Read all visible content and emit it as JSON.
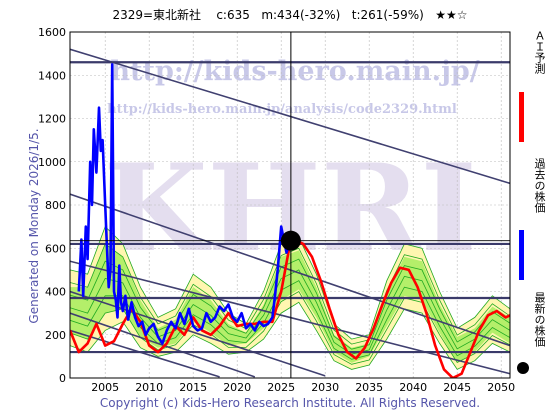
{
  "header": {
    "code_name": "2329=東北新社",
    "current": "c:635",
    "m_value": "m:434(-32%)",
    "t_value": "t:261(-59%)",
    "stars": "★★☆"
  },
  "footer": {
    "copyright": "Copyright (c) Kids-Hero Research Institute. All Rights Reserved."
  },
  "generated": "Generated on Monday 2026/1/5.",
  "watermark": {
    "url": "http://kids-hero.main.jp/",
    "analysis_url": "http://kids-hero.main.jp/analysis/code2329.html",
    "logo": "KHRI"
  },
  "legend": [
    {
      "label": "ＡＩ予測",
      "color": "#ff0000",
      "kind": "line"
    },
    {
      "label": "過去の株価",
      "color": "#0000ff",
      "kind": "line"
    },
    {
      "label": "最新の株価",
      "color": "#000000",
      "kind": "dot"
    }
  ],
  "colors": {
    "price": "#0000ff",
    "ai": "#ff0000",
    "band_outer": "#fff6b0",
    "band_inner": "#b4ef6a",
    "band_lines": "#22aa22",
    "trend": "#404070",
    "hline": "#3a3a6a"
  },
  "chart_data": {
    "type": "line",
    "xlim": [
      2001,
      2051
    ],
    "ylim": [
      0,
      1600
    ],
    "x_ticks": [
      2005,
      2010,
      2015,
      2020,
      2025,
      2030,
      2035,
      2040,
      2045,
      2050
    ],
    "y_ticks": [
      0,
      200,
      400,
      600,
      800,
      1000,
      1200,
      1400,
      1600
    ],
    "grid": true,
    "horizontal_levels": [
      1460,
      620,
      370,
      120
    ],
    "latest_point": {
      "x": 2026.1,
      "y": 635
    },
    "cursor_x": 2026.1,
    "trend_lines": [
      {
        "x": [
          2001,
          2051
        ],
        "y": [
          1520,
          900
        ]
      },
      {
        "x": [
          2001,
          2051
        ],
        "y": [
          850,
          150
        ]
      },
      {
        "x": [
          2001,
          2051
        ],
        "y": [
          540,
          20
        ]
      },
      {
        "x": [
          2001,
          2030
        ],
        "y": [
          400,
          10
        ]
      },
      {
        "x": [
          2001,
          2022
        ],
        "y": [
          300,
          5
        ]
      },
      {
        "x": [
          2001,
          2018
        ],
        "y": [
          220,
          5
        ]
      }
    ],
    "series": [
      {
        "name": "過去の株価",
        "x": [
          2002.0,
          2002.3,
          2002.5,
          2002.8,
          2003.0,
          2003.3,
          2003.5,
          2003.7,
          2004.0,
          2004.3,
          2004.5,
          2004.7,
          2005.0,
          2005.2,
          2005.4,
          2005.6,
          2005.8,
          2006.0,
          2006.2,
          2006.4,
          2006.6,
          2006.8,
          2007.0,
          2007.3,
          2007.6,
          2008.0,
          2008.4,
          2008.8,
          2009.2,
          2009.6,
          2010.0,
          2010.5,
          2011.0,
          2011.5,
          2012.0,
          2012.5,
          2013.0,
          2013.5,
          2014.0,
          2014.5,
          2015.0,
          2015.5,
          2016.0,
          2016.5,
          2017.0,
          2017.5,
          2018.0,
          2018.5,
          2019.0,
          2019.5,
          2020.0,
          2020.5,
          2021.0,
          2021.5,
          2022.0,
          2022.5,
          2023.0,
          2023.5,
          2024.0,
          2024.3,
          2024.6,
          2025.0,
          2025.3,
          2025.6,
          2026.0
        ],
        "y": [
          400,
          640,
          380,
          700,
          550,
          1000,
          800,
          1150,
          950,
          1250,
          1050,
          1100,
          800,
          600,
          420,
          500,
          1450,
          400,
          360,
          280,
          520,
          350,
          310,
          380,
          270,
          350,
          280,
          240,
          260,
          200,
          230,
          250,
          190,
          160,
          220,
          260,
          230,
          300,
          250,
          320,
          240,
          220,
          230,
          300,
          260,
          280,
          330,
          310,
          340,
          280,
          260,
          300,
          230,
          250,
          220,
          260,
          240,
          250,
          280,
          380,
          500,
          700,
          640,
          580,
          635
        ]
      },
      {
        "name": "ＡＩ予測",
        "x": [
          2001.0,
          2002.0,
          2003.0,
          2004.0,
          2005.0,
          2006.0,
          2007.0,
          2008.0,
          2009.0,
          2010.0,
          2011.0,
          2012.0,
          2013.0,
          2014.0,
          2015.0,
          2016.0,
          2017.0,
          2018.0,
          2019.0,
          2020.0,
          2021.0,
          2022.0,
          2023.0,
          2024.0,
          2025.0,
          2026.0,
          2026.5,
          2027.5,
          2028.5,
          2029.5,
          2030.5,
          2031.5,
          2032.5,
          2033.5,
          2034.5,
          2035.5,
          2036.5,
          2037.5,
          2038.5,
          2039.5,
          2040.5,
          2041.5,
          2042.5,
          2043.5,
          2044.5,
          2045.5,
          2046.5,
          2047.5,
          2048.5,
          2049.5,
          2050.5,
          2051.0
        ],
        "y": [
          220,
          120,
          160,
          250,
          150,
          170,
          250,
          320,
          260,
          150,
          120,
          160,
          240,
          200,
          280,
          220,
          200,
          240,
          300,
          240,
          250,
          250,
          260,
          260,
          400,
          620,
          640,
          620,
          560,
          450,
          320,
          200,
          120,
          90,
          140,
          230,
          340,
          440,
          510,
          500,
          420,
          300,
          150,
          40,
          0,
          20,
          120,
          220,
          290,
          310,
          280,
          290
        ]
      }
    ],
    "bands": {
      "x": [
        2001,
        2003,
        2005,
        2007,
        2009,
        2011,
        2013,
        2015,
        2017,
        2019,
        2021,
        2023,
        2025,
        2027,
        2029,
        2031,
        2033,
        2035,
        2037,
        2039,
        2041,
        2043,
        2045,
        2047,
        2049,
        2051
      ],
      "outer_upper": [
        500,
        480,
        700,
        620,
        420,
        280,
        320,
        480,
        420,
        300,
        250,
        400,
        620,
        650,
        480,
        250,
        180,
        200,
        450,
        620,
        600,
        400,
        230,
        280,
        380,
        320
      ],
      "outer_lower": [
        150,
        120,
        220,
        260,
        140,
        100,
        120,
        200,
        160,
        110,
        120,
        180,
        300,
        350,
        220,
        80,
        40,
        60,
        180,
        320,
        300,
        160,
        40,
        80,
        160,
        120
      ],
      "inner_upper": [
        420,
        420,
        620,
        560,
        360,
        230,
        270,
        420,
        360,
        250,
        210,
        340,
        560,
        590,
        420,
        200,
        140,
        160,
        390,
        560,
        540,
        340,
        190,
        230,
        330,
        280
      ],
      "inner_lower": [
        210,
        180,
        300,
        320,
        190,
        140,
        160,
        260,
        210,
        150,
        160,
        230,
        360,
        410,
        280,
        120,
        70,
        100,
        240,
        380,
        360,
        210,
        70,
        120,
        210,
        160
      ]
    }
  }
}
